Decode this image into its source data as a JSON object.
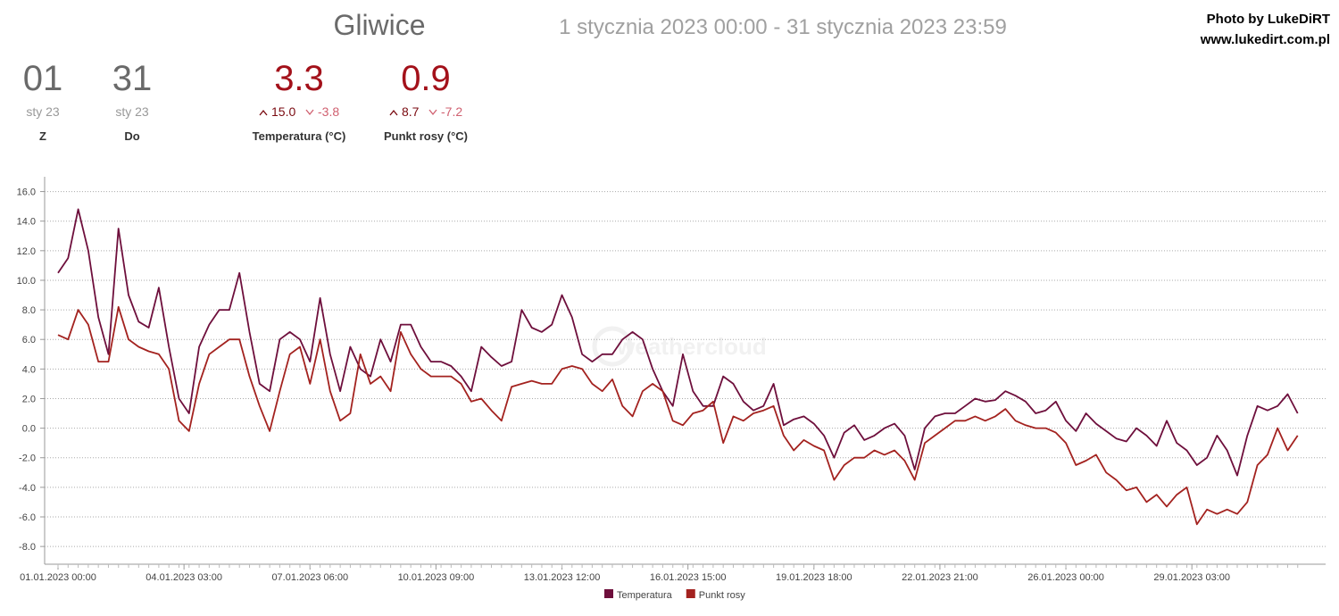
{
  "header": {
    "title": "Gliwice",
    "range": "1 stycznia 2023 00:00 - 31 stycznia 2023 23:59",
    "credit": "Photo by LukeDiRT",
    "site": "www.lukedirt.com.pl",
    "watermark": "weathercloud"
  },
  "stats": [
    {
      "value": "01",
      "sub": "sty 23",
      "label": "Z"
    },
    {
      "value": "31",
      "sub": "sty 23",
      "label": "Do"
    },
    {
      "value": "3.3",
      "max": "15.0",
      "min": "-3.8",
      "label": "Temperatura (°C)"
    },
    {
      "value": "0.9",
      "max": "8.7",
      "min": "-7.2",
      "label": "Punkt rosy (°C)"
    }
  ],
  "chart_data": {
    "type": "line",
    "grid": true,
    "x": [
      "01.01.2023 00:00",
      "01.01.2023 06:00",
      "01.01.2023 12:00",
      "01.01.2023 18:00",
      "02.01.2023 00:00",
      "02.01.2023 06:00",
      "02.01.2023 12:00",
      "02.01.2023 18:00",
      "03.01.2023 00:00",
      "03.01.2023 06:00",
      "03.01.2023 12:00",
      "03.01.2023 18:00",
      "04.01.2023 00:00",
      "04.01.2023 06:00",
      "04.01.2023 12:00",
      "04.01.2023 18:00",
      "05.01.2023 00:00",
      "05.01.2023 06:00",
      "05.01.2023 12:00",
      "05.01.2023 18:00",
      "06.01.2023 00:00",
      "06.01.2023 06:00",
      "06.01.2023 12:00",
      "06.01.2023 18:00",
      "07.01.2023 00:00",
      "07.01.2023 06:00",
      "07.01.2023 12:00",
      "07.01.2023 18:00",
      "08.01.2023 00:00",
      "08.01.2023 06:00",
      "08.01.2023 12:00",
      "08.01.2023 18:00",
      "09.01.2023 00:00",
      "09.01.2023 06:00",
      "09.01.2023 12:00",
      "09.01.2023 18:00",
      "10.01.2023 00:00",
      "10.01.2023 06:00",
      "10.01.2023 12:00",
      "10.01.2023 18:00",
      "11.01.2023 00:00",
      "11.01.2023 06:00",
      "11.01.2023 12:00",
      "11.01.2023 18:00",
      "12.01.2023 00:00",
      "12.01.2023 06:00",
      "12.01.2023 12:00",
      "12.01.2023 18:00",
      "13.01.2023 00:00",
      "13.01.2023 06:00",
      "13.01.2023 12:00",
      "13.01.2023 18:00",
      "14.01.2023 00:00",
      "14.01.2023 06:00",
      "14.01.2023 12:00",
      "14.01.2023 18:00",
      "15.01.2023 00:00",
      "15.01.2023 06:00",
      "15.01.2023 12:00",
      "15.01.2023 18:00",
      "16.01.2023 00:00",
      "16.01.2023 06:00",
      "16.01.2023 12:00",
      "16.01.2023 18:00",
      "17.01.2023 00:00",
      "17.01.2023 06:00",
      "17.01.2023 12:00",
      "17.01.2023 18:00",
      "18.01.2023 00:00",
      "18.01.2023 06:00",
      "18.01.2023 12:00",
      "18.01.2023 18:00",
      "19.01.2023 00:00",
      "19.01.2023 06:00",
      "19.01.2023 12:00",
      "19.01.2023 18:00",
      "20.01.2023 00:00",
      "20.01.2023 06:00",
      "20.01.2023 12:00",
      "20.01.2023 18:00",
      "21.01.2023 00:00",
      "21.01.2023 06:00",
      "21.01.2023 12:00",
      "21.01.2023 18:00",
      "22.01.2023 00:00",
      "22.01.2023 06:00",
      "22.01.2023 12:00",
      "22.01.2023 18:00",
      "23.01.2023 00:00",
      "23.01.2023 06:00",
      "23.01.2023 12:00",
      "23.01.2023 18:00",
      "24.01.2023 00:00",
      "24.01.2023 06:00",
      "24.01.2023 12:00",
      "24.01.2023 18:00",
      "25.01.2023 00:00",
      "25.01.2023 06:00",
      "25.01.2023 12:00",
      "25.01.2023 18:00",
      "26.01.2023 00:00",
      "26.01.2023 06:00",
      "26.01.2023 12:00",
      "26.01.2023 18:00",
      "27.01.2023 00:00",
      "27.01.2023 06:00",
      "27.01.2023 12:00",
      "27.01.2023 18:00",
      "28.01.2023 00:00",
      "28.01.2023 06:00",
      "28.01.2023 12:00",
      "28.01.2023 18:00",
      "29.01.2023 00:00",
      "29.01.2023 06:00",
      "29.01.2023 12:00",
      "29.01.2023 18:00",
      "30.01.2023 00:00",
      "30.01.2023 06:00",
      "30.01.2023 12:00",
      "30.01.2023 18:00",
      "31.01.2023 00:00",
      "31.01.2023 06:00",
      "31.01.2023 12:00",
      "31.01.2023 18:00"
    ],
    "series": [
      {
        "name": "Temperatura",
        "color": "#6e0f3c",
        "values": [
          10.5,
          11.5,
          14.8,
          12,
          7.5,
          5,
          13.5,
          9,
          7.2,
          6.8,
          9.5,
          5.5,
          2,
          1,
          5.5,
          7,
          8,
          8,
          10.5,
          6.5,
          3,
          2.5,
          6,
          6.5,
          6,
          4.5,
          8.8,
          5,
          2.5,
          5.5,
          4,
          3.5,
          6,
          4.5,
          7,
          7,
          5.5,
          4.5,
          4.5,
          4.2,
          3.5,
          2.5,
          5.5,
          4.8,
          4.2,
          4.5,
          8,
          6.8,
          6.5,
          7,
          9,
          7.5,
          5,
          4.5,
          5,
          5,
          6,
          6.5,
          6,
          4,
          2.5,
          1.5,
          5,
          2.5,
          1.5,
          1.5,
          3.5,
          3,
          1.8,
          1.2,
          1.5,
          3,
          0.2,
          0.6,
          0.8,
          0.3,
          -0.5,
          -2,
          -0.3,
          0.2,
          -0.8,
          -0.5,
          0,
          0.3,
          -0.5,
          -2.8,
          0,
          0.8,
          1,
          1,
          1.5,
          2,
          1.8,
          1.9,
          2.5,
          2.2,
          1.8,
          1,
          1.2,
          1.8,
          0.5,
          -0.2,
          1,
          0.3,
          -0.2,
          -0.7,
          -0.9,
          0,
          -0.5,
          -1.2,
          0.5,
          -1,
          -1.5,
          -2.5,
          -2,
          -0.5,
          -1.5,
          -3.2,
          -0.5,
          1.5,
          1.2,
          1.5,
          2.3,
          1
        ]
      },
      {
        "name": "Punkt rosy",
        "color": "#a3221f",
        "values": [
          6.3,
          6,
          8,
          7,
          4.5,
          4.5,
          8.2,
          6,
          5.5,
          5.2,
          5,
          4,
          0.5,
          -0.2,
          3,
          5,
          5.5,
          6,
          6,
          3.5,
          1.5,
          -0.2,
          2.5,
          5,
          5.5,
          3,
          6,
          2.5,
          0.5,
          1,
          5,
          3,
          3.5,
          2.5,
          6.5,
          5,
          4,
          3.5,
          3.5,
          3.5,
          3,
          1.8,
          2,
          1.2,
          0.5,
          2.8,
          3,
          3.2,
          3,
          3,
          4,
          4.2,
          4,
          3,
          2.5,
          3.3,
          1.5,
          0.8,
          2.5,
          3,
          2.5,
          0.5,
          0.2,
          1,
          1.2,
          1.8,
          -1,
          0.8,
          0.5,
          1,
          1.2,
          1.5,
          -0.5,
          -1.5,
          -0.8,
          -1.2,
          -1.5,
          -3.5,
          -2.5,
          -2,
          -2,
          -1.5,
          -1.8,
          -1.5,
          -2.2,
          -3.5,
          -1,
          -0.5,
          0,
          0.5,
          0.5,
          0.8,
          0.5,
          0.8,
          1.3,
          0.5,
          0.2,
          0,
          0,
          -0.3,
          -1,
          -2.5,
          -2.2,
          -1.8,
          -3,
          -3.5,
          -4.2,
          -4,
          -5,
          -4.5,
          -5.3,
          -4.5,
          -4,
          -6.5,
          -5.5,
          -5.8,
          -5.5,
          -5.8,
          -5,
          -2.5,
          -1.8,
          0,
          -1.5,
          -0.5
        ]
      }
    ],
    "xlim": [
      "01.01.2023 00:00",
      "31.01.2023 23:59"
    ],
    "xticks": [
      "01.01.2023 00:00",
      "04.01.2023 03:00",
      "07.01.2023 06:00",
      "10.01.2023 09:00",
      "13.01.2023 12:00",
      "16.01.2023 15:00",
      "19.01.2023 18:00",
      "22.01.2023 21:00",
      "26.01.2023 00:00",
      "29.01.2023 03:00"
    ],
    "ylim": [
      -9.2,
      17
    ],
    "yticks": [
      {
        "value": -8,
        "label": "-8.0"
      },
      {
        "value": -6,
        "label": "-6.0"
      },
      {
        "value": -4,
        "label": "-4.0"
      },
      {
        "value": -2,
        "label": "-2.0"
      },
      {
        "value": 0,
        "label": "0.0"
      },
      {
        "value": 2,
        "label": "2.0"
      },
      {
        "value": 4,
        "label": "4.0"
      },
      {
        "value": 6,
        "label": "6.0"
      },
      {
        "value": 8,
        "label": "8.0"
      },
      {
        "value": 10,
        "label": "10.0"
      },
      {
        "value": 12,
        "label": "12.0"
      },
      {
        "value": 14,
        "label": "14.0"
      },
      {
        "value": 16,
        "label": "16.0"
      }
    ]
  }
}
